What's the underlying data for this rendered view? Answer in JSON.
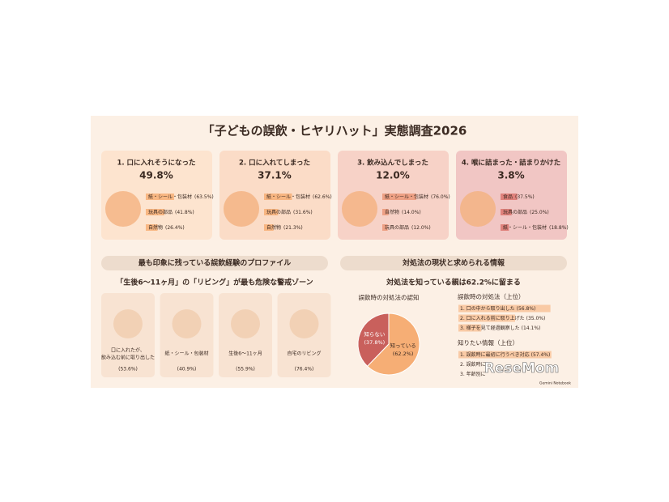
{
  "title": "「子どもの誤飲・ヒヤリハット」実態調査2026",
  "cards": [
    {
      "title": "1. 口に入れそうになった",
      "value": 49.8,
      "label": "49.8%",
      "items": [
        {
          "name": "紙・シール・包装材",
          "value": 63.5,
          "label": "(63.5%)"
        },
        {
          "name": "玩具の部品",
          "value": 41.8,
          "label": "(41.8%)"
        },
        {
          "name": "自然物",
          "value": 26.4,
          "label": "(26.4%)"
        }
      ]
    },
    {
      "title": "2. 口に入れてしまった",
      "value": 37.1,
      "label": "37.1%",
      "items": [
        {
          "name": "紙・シール・包装材",
          "value": 62.6,
          "label": "(62.6%)"
        },
        {
          "name": "玩具の部品",
          "value": 31.6,
          "label": "(31.6%)"
        },
        {
          "name": "自然物",
          "value": 21.3,
          "label": "(21.3%)"
        }
      ]
    },
    {
      "title": "3. 飲み込んでしまった",
      "value": 12.0,
      "label": "12.0%",
      "items": [
        {
          "name": "紙・シール・包装材",
          "value": 76.0,
          "label": "(76.0%)"
        },
        {
          "name": "自然物",
          "value": 14.0,
          "label": "(14.0%)"
        },
        {
          "name": "玩具の部品",
          "value": 12.0,
          "label": "(12.0%)"
        }
      ]
    },
    {
      "title": "4. 喉に詰まった・詰まりかけた",
      "value": 3.8,
      "label": "3.8%",
      "items": [
        {
          "name": "食品",
          "value": 37.5,
          "label": "(37.5%)"
        },
        {
          "name": "玩具の部品",
          "value": 25.0,
          "label": "(25.0%)"
        },
        {
          "name": "紙・シール・包装材",
          "value": 18.8,
          "label": "(18.8%)"
        }
      ]
    }
  ],
  "profile": {
    "header": "最も印象に残っている誤飲経験のプロファイル",
    "subtitle": "「生後6〜11ヶ月」の「リビング」が最も危険な警戒ゾーン",
    "items": [
      {
        "lines": [
          "口に入れたが、",
          "飲み込む前に取り出した"
        ],
        "label": "(53.6%)"
      },
      {
        "lines": [
          "紙・シール・包装材"
        ],
        "label": "(40.9%)"
      },
      {
        "lines": [
          "生後6〜11ヶ月"
        ],
        "label": "(55.9%)"
      },
      {
        "lines": [
          "自宅のリビング"
        ],
        "label": "(76.4%)"
      }
    ]
  },
  "response": {
    "header": "対処法の現状と求められる情報",
    "subtitle": "対処法を知っている親は62.2%に留まる",
    "pie": {
      "title": "誤飲時の対処法の認知",
      "slices": [
        {
          "name": "知らない",
          "value": 37.8,
          "label": "(37.8%)",
          "color": "#c9605c"
        },
        {
          "name": "知っている",
          "value": 62.2,
          "label": "(62.2%)",
          "color": "#f6ae75"
        }
      ]
    },
    "actions": {
      "title": "誤飲時の対処法（上位）",
      "items": [
        {
          "name": "1. 口の中から取り出した",
          "value": 56.8,
          "label": "(56.8%)"
        },
        {
          "name": "2. 口に入れる前に取り上げた",
          "value": 35.0,
          "label": "(35.0%)"
        },
        {
          "name": "3. 様子を見て経過観察した",
          "value": 14.1,
          "label": "(14.1%)"
        }
      ]
    },
    "wants": {
      "title": "知りたい情報（上位）",
      "items": [
        {
          "name": "1. 誤飲時に最初に行うべき対応",
          "value": 57.4,
          "label": "(57.4%)"
        },
        {
          "name": "2. 誤飲時に"
        },
        {
          "name": "3. 年齢別に"
        }
      ]
    }
  },
  "credit": "Gemini Notebook",
  "watermark": "ReseMom"
}
